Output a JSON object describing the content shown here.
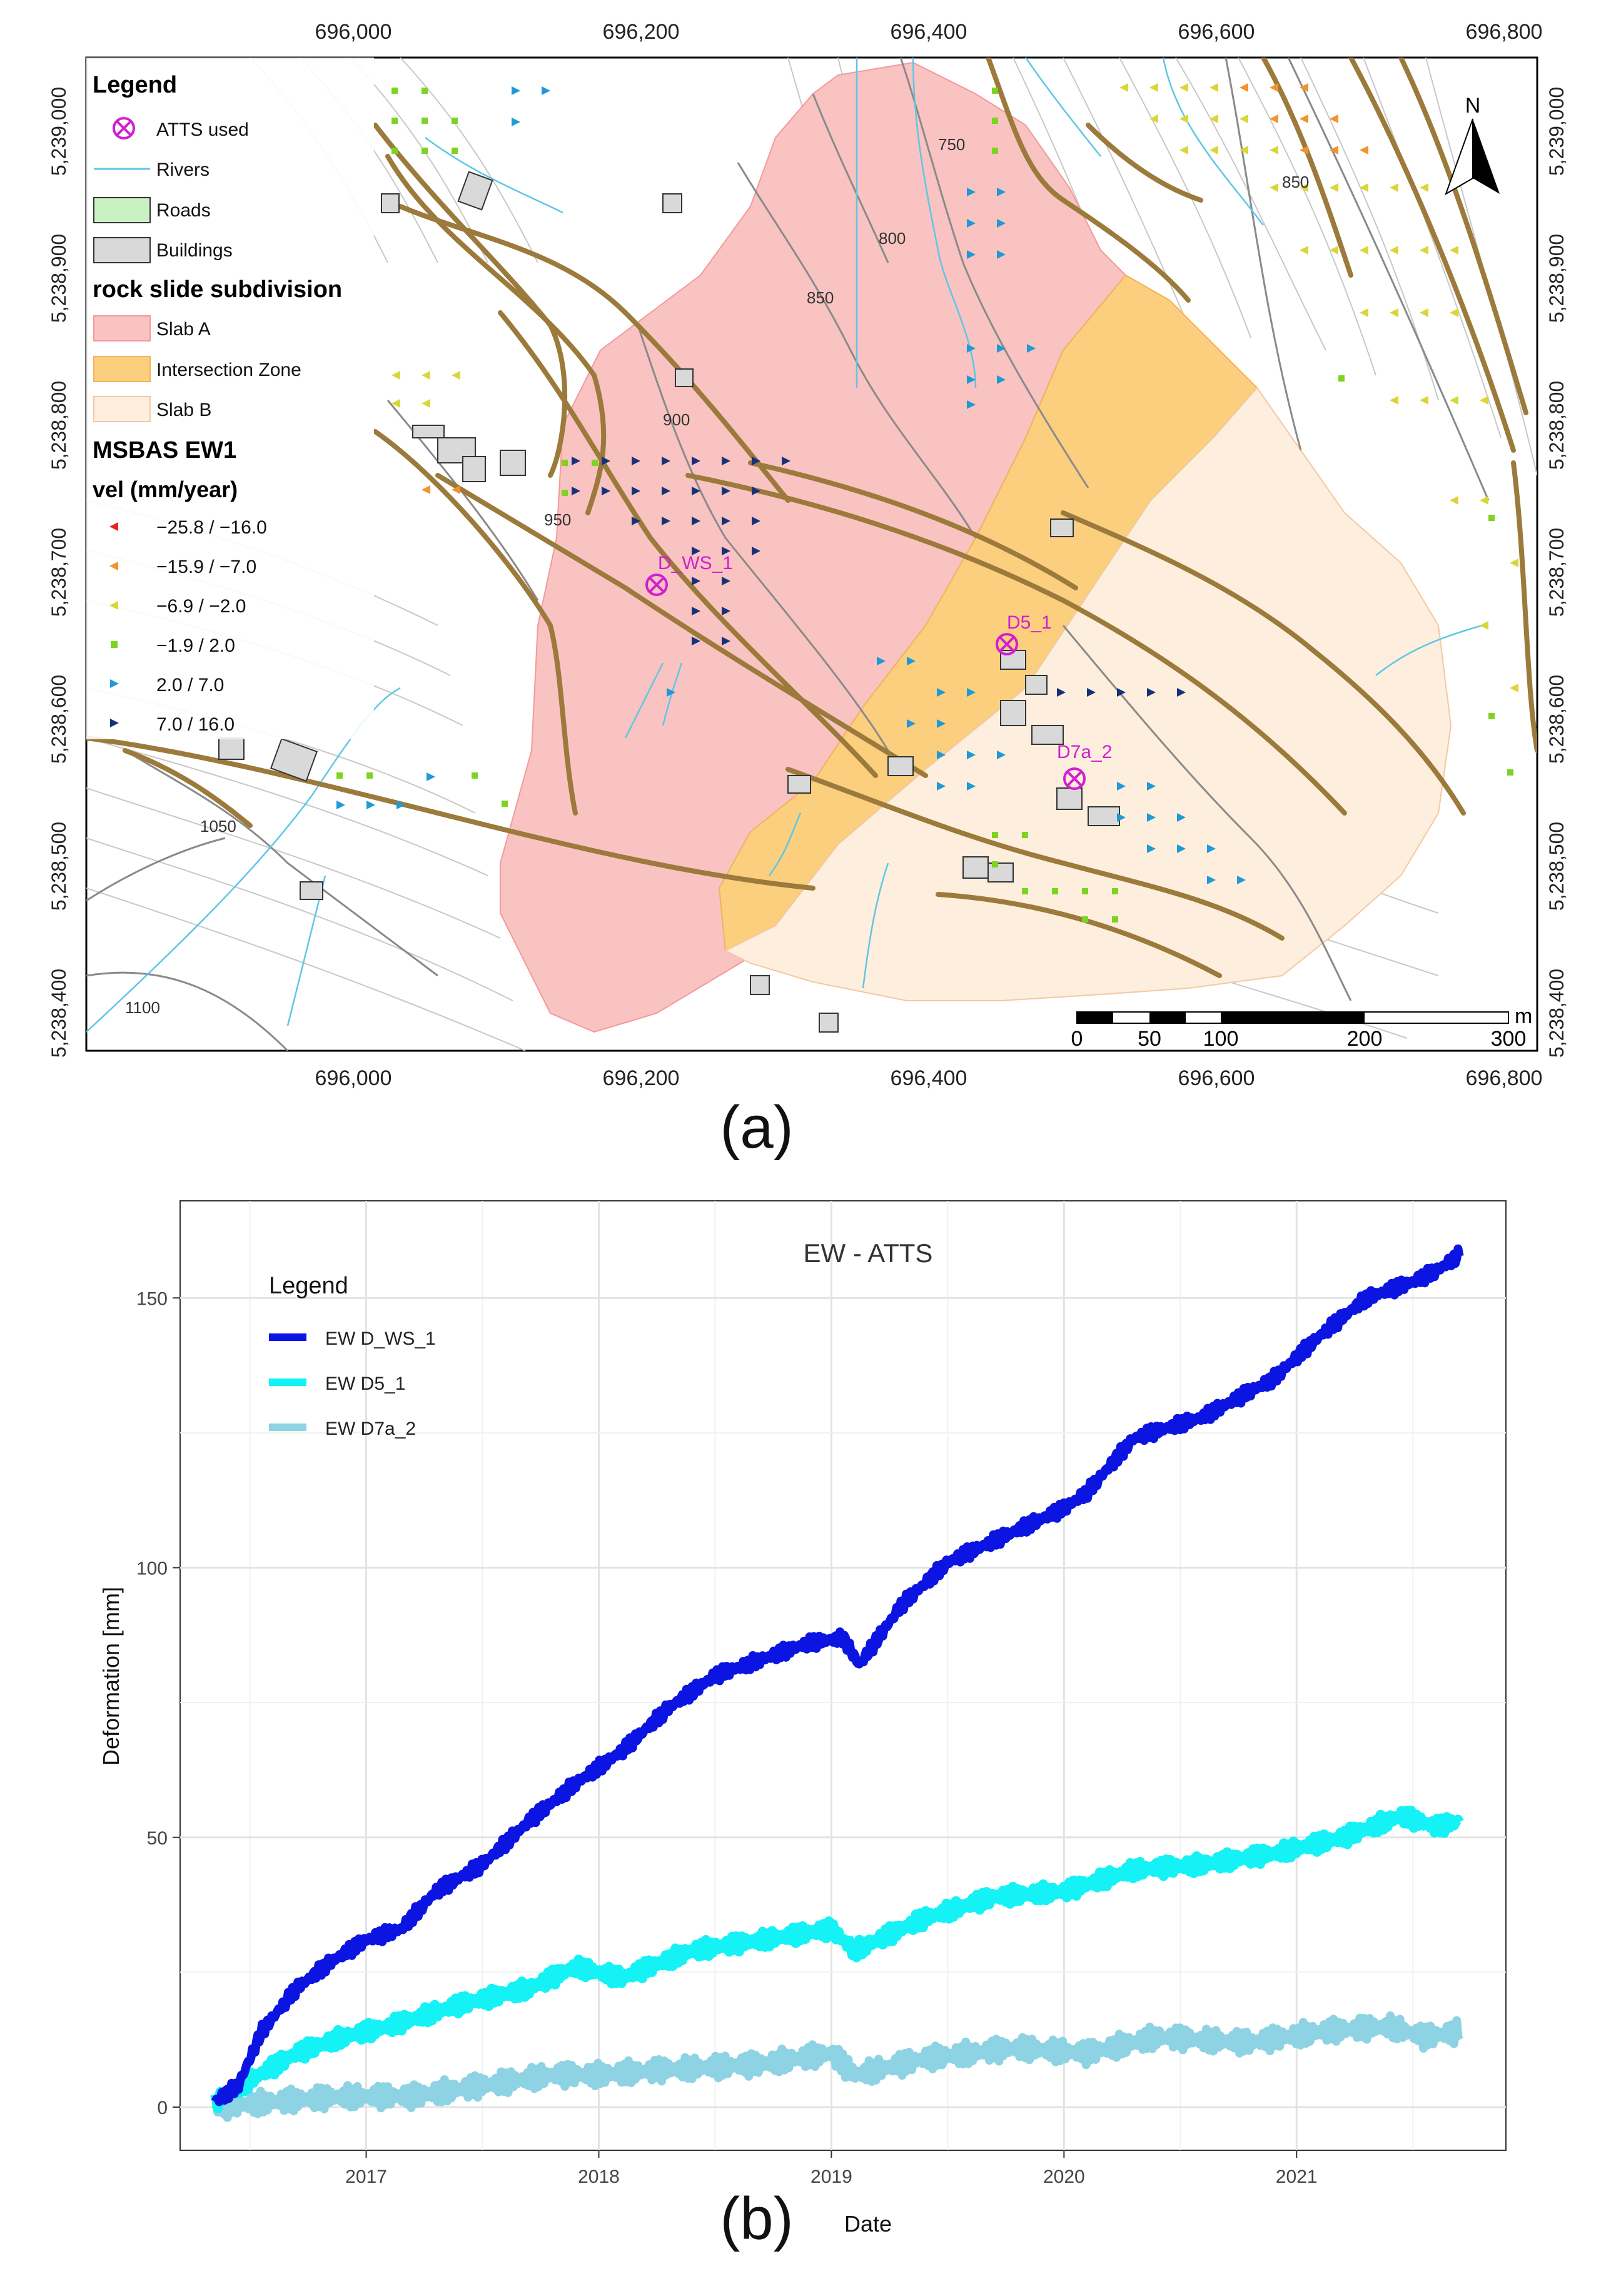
{
  "map": {
    "x_ticks": [
      "696,000",
      "696,200",
      "696,400",
      "696,600",
      "696,800"
    ],
    "y_ticks": [
      "5,239,000",
      "5,238,900",
      "5,238,800",
      "5,238,700",
      "5,238,600",
      "5,238,500",
      "5,238,400"
    ],
    "legend": {
      "title": "Legend",
      "items": [
        "ATTS used",
        "Rivers",
        "Roads",
        "Buildings"
      ],
      "subdivision_title": "rock slide subdivision",
      "subdivision_items": [
        "Slab A",
        "Intersection Zone",
        "Slab B"
      ],
      "velocity_title": "MSBAS EW1",
      "velocity_unit": "vel (mm/year)",
      "velocity_classes": [
        {
          "label": "−25.8 / −16.0",
          "color": "#e8231d"
        },
        {
          "label": "−15.9 / −7.0",
          "color": "#f2932b"
        },
        {
          "label": "−6.9 / −2.0",
          "color": "#dad63a"
        },
        {
          "label": "−1.9 / 2.0",
          "color": "#7ed321"
        },
        {
          "label": "2.0 / 7.0",
          "color": "#1f9ad6"
        },
        {
          "label": "7.0 / 16.0",
          "color": "#16317a"
        }
      ]
    },
    "contours": [
      "750",
      "800",
      "850",
      "850",
      "900",
      "950",
      "1050",
      "1100"
    ],
    "atts_points": [
      "D_WS_1",
      "D5_1",
      "D7a_2"
    ],
    "north_label": "N",
    "scale": {
      "labels": [
        "0",
        "50",
        "100",
        "200",
        "300"
      ],
      "unit": "m"
    },
    "colors": {
      "slab_a": "#f9c3c2",
      "intersection": "#fbcf7e",
      "slab_b": "#fdeedd",
      "road": "#9b7a3b",
      "river": "#5ec6e6",
      "atts": "#d11fcf"
    },
    "panel_label": "(a)"
  },
  "chart": {
    "panel_label": "(b)"
  },
  "chart_data": {
    "type": "line",
    "title": "EW - ATTS",
    "xlabel": "Date",
    "ylabel": "Deformation [mm]",
    "xlim": [
      2016.2,
      2021.9
    ],
    "ylim": [
      -8,
      168
    ],
    "x_ticks": [
      2017,
      2018,
      2019,
      2020,
      2021
    ],
    "y_ticks": [
      0,
      50,
      100,
      150
    ],
    "legend_title": "Legend",
    "series": [
      {
        "name": "EW D_WS_1",
        "color": "#0b14e0",
        "x": [
          2016.35,
          2016.45,
          2016.55,
          2016.7,
          2016.85,
          2017.0,
          2017.15,
          2017.3,
          2017.5,
          2017.7,
          2017.9,
          2018.1,
          2018.3,
          2018.5,
          2018.7,
          2018.9,
          2019.05,
          2019.12,
          2019.3,
          2019.5,
          2019.8,
          2020.0,
          2020.1,
          2020.3,
          2020.6,
          2020.9,
          2021.1,
          2021.3,
          2021.5,
          2021.6,
          2021.7
        ],
        "y": [
          1,
          4,
          14,
          22,
          27,
          31,
          33,
          40,
          45,
          53,
          60,
          66,
          74,
          80,
          83,
          86,
          87,
          82,
          93,
          101,
          107,
          111,
          114,
          124,
          128,
          135,
          143,
          150,
          153,
          155,
          158
        ]
      },
      {
        "name": "EW D5_1",
        "color": "#14f2f5",
        "x": [
          2016.35,
          2016.5,
          2016.7,
          2016.9,
          2017.1,
          2017.4,
          2017.7,
          2017.9,
          2018.1,
          2018.4,
          2018.7,
          2019.0,
          2019.1,
          2019.4,
          2019.7,
          2020.0,
          2020.3,
          2020.6,
          2020.9,
          2021.2,
          2021.45,
          2021.6,
          2021.7
        ],
        "y": [
          1,
          5,
          10,
          13,
          15,
          19,
          22,
          26,
          24,
          29,
          31,
          33,
          29,
          35,
          39,
          40,
          44,
          45,
          47,
          50,
          54,
          52,
          53
        ]
      },
      {
        "name": "EW D7a_2",
        "color": "#8ed3e3",
        "x": [
          2016.35,
          2016.6,
          2016.9,
          2017.2,
          2017.5,
          2017.8,
          2018.0,
          2018.3,
          2018.7,
          2019.0,
          2019.1,
          2019.4,
          2019.8,
          2020.1,
          2020.4,
          2020.8,
          2021.1,
          2021.4,
          2021.55,
          2021.7
        ],
        "y": [
          0,
          1,
          2,
          2,
          4,
          6,
          6,
          7,
          8,
          10,
          6,
          9,
          11,
          10,
          13,
          12,
          14,
          15,
          13,
          14
        ]
      }
    ]
  }
}
